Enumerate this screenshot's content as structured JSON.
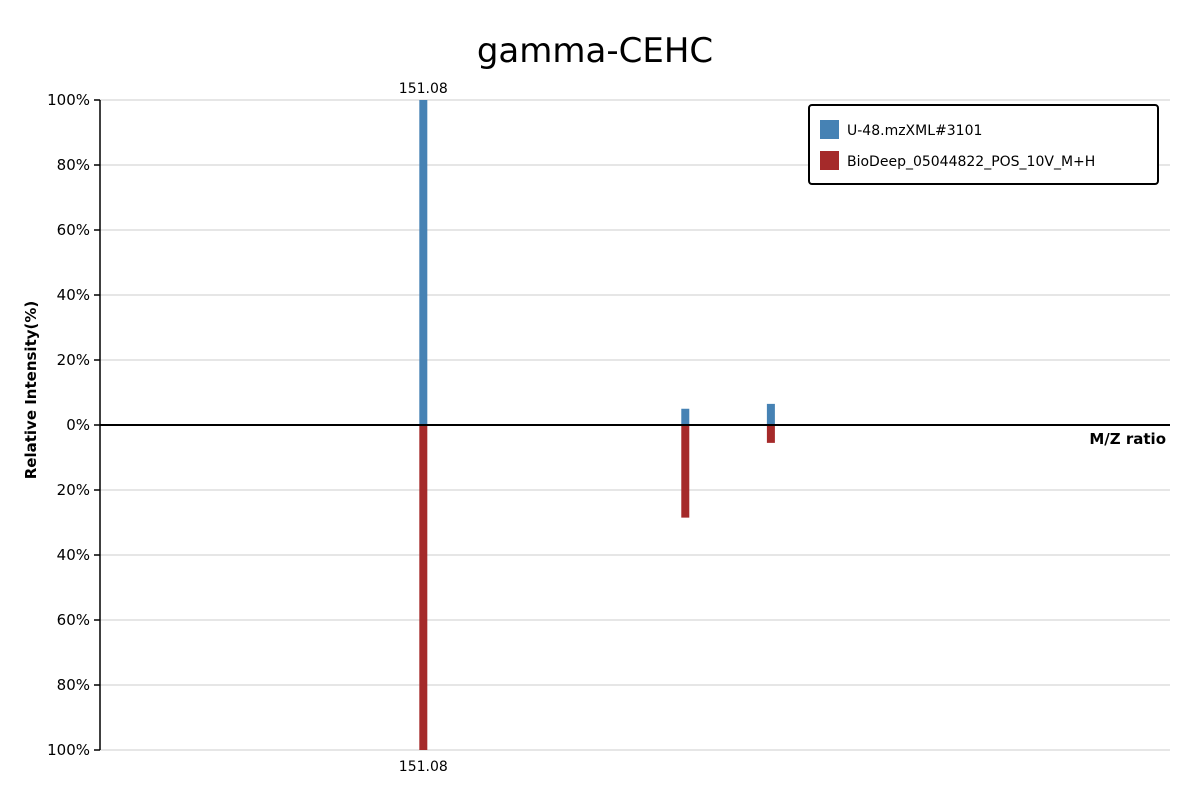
{
  "chart_data": {
    "type": "bar",
    "title": "gamma-CEHC",
    "xlabel": "M/Z ratio",
    "ylabel": "Relative Intensity(%)",
    "x_range": [
      0,
      500
    ],
    "ylim": [
      -100,
      100
    ],
    "y_ticks": [
      {
        "value": 100,
        "label": "100%"
      },
      {
        "value": 80,
        "label": "80%"
      },
      {
        "value": 60,
        "label": "60%"
      },
      {
        "value": 40,
        "label": "40%"
      },
      {
        "value": 20,
        "label": "20%"
      },
      {
        "value": 0,
        "label": "0%"
      },
      {
        "value": -20,
        "label": "20%"
      },
      {
        "value": -40,
        "label": "40%"
      },
      {
        "value": -60,
        "label": "60%"
      },
      {
        "value": -80,
        "label": "80%"
      },
      {
        "value": -100,
        "label": "100%"
      }
    ],
    "grid": true,
    "legend_position": "top-right",
    "series": [
      {
        "name": "U-48.mzXML#3101",
        "color": "#4682b4",
        "direction": "up",
        "peaks": [
          {
            "mz": 151.08,
            "intensity": 100,
            "label": "151.08"
          },
          {
            "mz": 273.5,
            "intensity": 5,
            "label": ""
          },
          {
            "mz": 313.5,
            "intensity": 6.5,
            "label": ""
          }
        ]
      },
      {
        "name": "BioDeep_05044822_POS_10V_M+H",
        "color": "#a52a2a",
        "direction": "down",
        "peaks": [
          {
            "mz": 151.08,
            "intensity": 100,
            "label": "151.08"
          },
          {
            "mz": 273.5,
            "intensity": 28.5,
            "label": ""
          },
          {
            "mz": 313.5,
            "intensity": 5.5,
            "label": ""
          }
        ]
      }
    ]
  }
}
